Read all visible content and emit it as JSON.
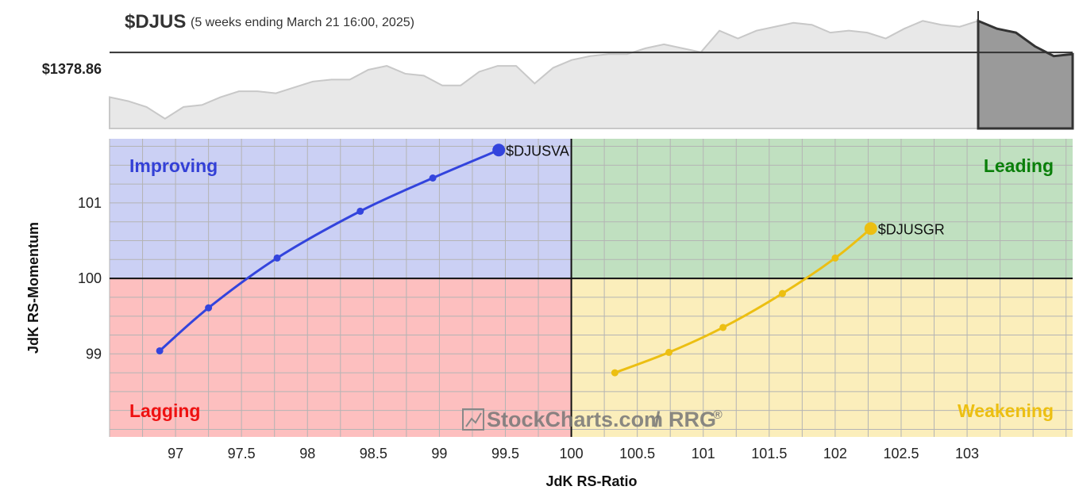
{
  "header": {
    "symbol": "$DJUS",
    "subtitle": "(5 weeks ending March 21 16:00, 2025)",
    "price_label": "$1378.86",
    "price_level": 1378.86
  },
  "price_chart": {
    "values": [
      1356,
      1354,
      1351,
      1345,
      1351,
      1352,
      1356,
      1359,
      1359,
      1358,
      1361,
      1364,
      1365,
      1365,
      1370,
      1372,
      1368,
      1367,
      1362,
      1362,
      1369,
      1372,
      1372,
      1363,
      1371,
      1375,
      1377,
      1378,
      1378,
      1381,
      1383,
      1381,
      1379,
      1390,
      1386,
      1390,
      1392,
      1394,
      1393,
      1389,
      1390,
      1389,
      1386,
      1391,
      1395,
      1393,
      1392,
      1395
    ],
    "recent_values": [
      1395,
      1391,
      1389,
      1382,
      1377,
      1378
    ],
    "ylim": [
      1340,
      1400
    ]
  },
  "quadrants": {
    "improving": {
      "label": "Improving",
      "color": "#3340d6",
      "fill": "#cbd0f4"
    },
    "leading": {
      "label": "Leading",
      "color": "#0a7f0a",
      "fill": "#c0e0c0"
    },
    "lagging": {
      "label": "Lagging",
      "color": "#ee1111",
      "fill": "#fdbfbf"
    },
    "weakening": {
      "label": "Weakening",
      "color": "#ecbf12",
      "fill": "#fbeebb"
    }
  },
  "watermark": {
    "brand": "StockCharts.com",
    "separator": "/",
    "product": "RRG",
    "registered": "®"
  },
  "chart_data": {
    "type": "scatter",
    "title": "$DJUS",
    "xlabel": "JdK RS-Ratio",
    "ylabel": "JdK RS-Momentum",
    "xlim": [
      96.5,
      103.8
    ],
    "ylim": [
      97.9,
      101.85
    ],
    "x_ticks": [
      97,
      97.5,
      98,
      98.5,
      99,
      99.5,
      100,
      100.5,
      101,
      101.5,
      102,
      102.5,
      103
    ],
    "y_ticks": [
      99,
      100,
      101
    ],
    "center": [
      100,
      100
    ],
    "series": [
      {
        "name": "$DJUSVA",
        "color": "#3344dd",
        "x": [
          96.88,
          97.25,
          97.77,
          98.4,
          98.95,
          99.45
        ],
        "y": [
          99.04,
          99.61,
          100.27,
          100.89,
          101.33,
          101.7
        ]
      },
      {
        "name": "$DJUSGR",
        "color": "#ecbf12",
        "x": [
          100.33,
          100.74,
          101.15,
          101.6,
          102.0,
          102.27
        ],
        "y": [
          98.75,
          99.02,
          99.35,
          99.8,
          100.27,
          100.66
        ]
      }
    ]
  }
}
